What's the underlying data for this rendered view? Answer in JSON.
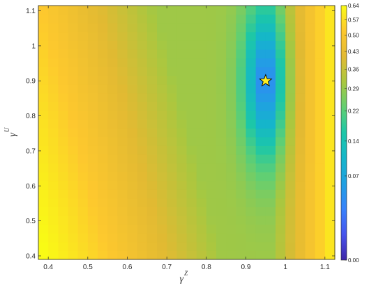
{
  "chart_data": {
    "type": "heatmap",
    "xlabel": "γ",
    "xlabel_superscript": "Z",
    "ylabel": "γ",
    "ylabel_superscript": "U",
    "xlim": [
      0.375,
      1.125
    ],
    "ylim": [
      0.39,
      1.115
    ],
    "xticks": [
      "0.4",
      "0.5",
      "0.6",
      "0.7",
      "0.8",
      "0.9",
      "1",
      "1.1"
    ],
    "yticks": [
      "0.4",
      "0.5",
      "0.6",
      "0.7",
      "0.8",
      "0.9",
      "1",
      "1.1"
    ],
    "grid_x": {
      "start": 0.375,
      "step": 0.025,
      "count": 30
    },
    "grid_y": {
      "start": 0.39,
      "step": 0.025,
      "count": 29
    },
    "optimum": {
      "x": 0.95,
      "y": 0.9,
      "marker": "star",
      "color": "#ffee22"
    },
    "colormap": "parula",
    "colorbar": {
      "position": "right",
      "range": [
        0,
        0.64
      ],
      "ticks": [
        "0.00",
        "0.07",
        "0.14",
        "0.22",
        "0.29",
        "0.36",
        "0.43",
        "0.50",
        "0.57",
        "0.64"
      ],
      "tick_values": [
        0,
        0.07,
        0.14,
        0.22,
        0.29,
        0.36,
        0.43,
        0.5,
        0.57,
        0.64
      ],
      "scale": "sqrt"
    },
    "grid": false
  }
}
